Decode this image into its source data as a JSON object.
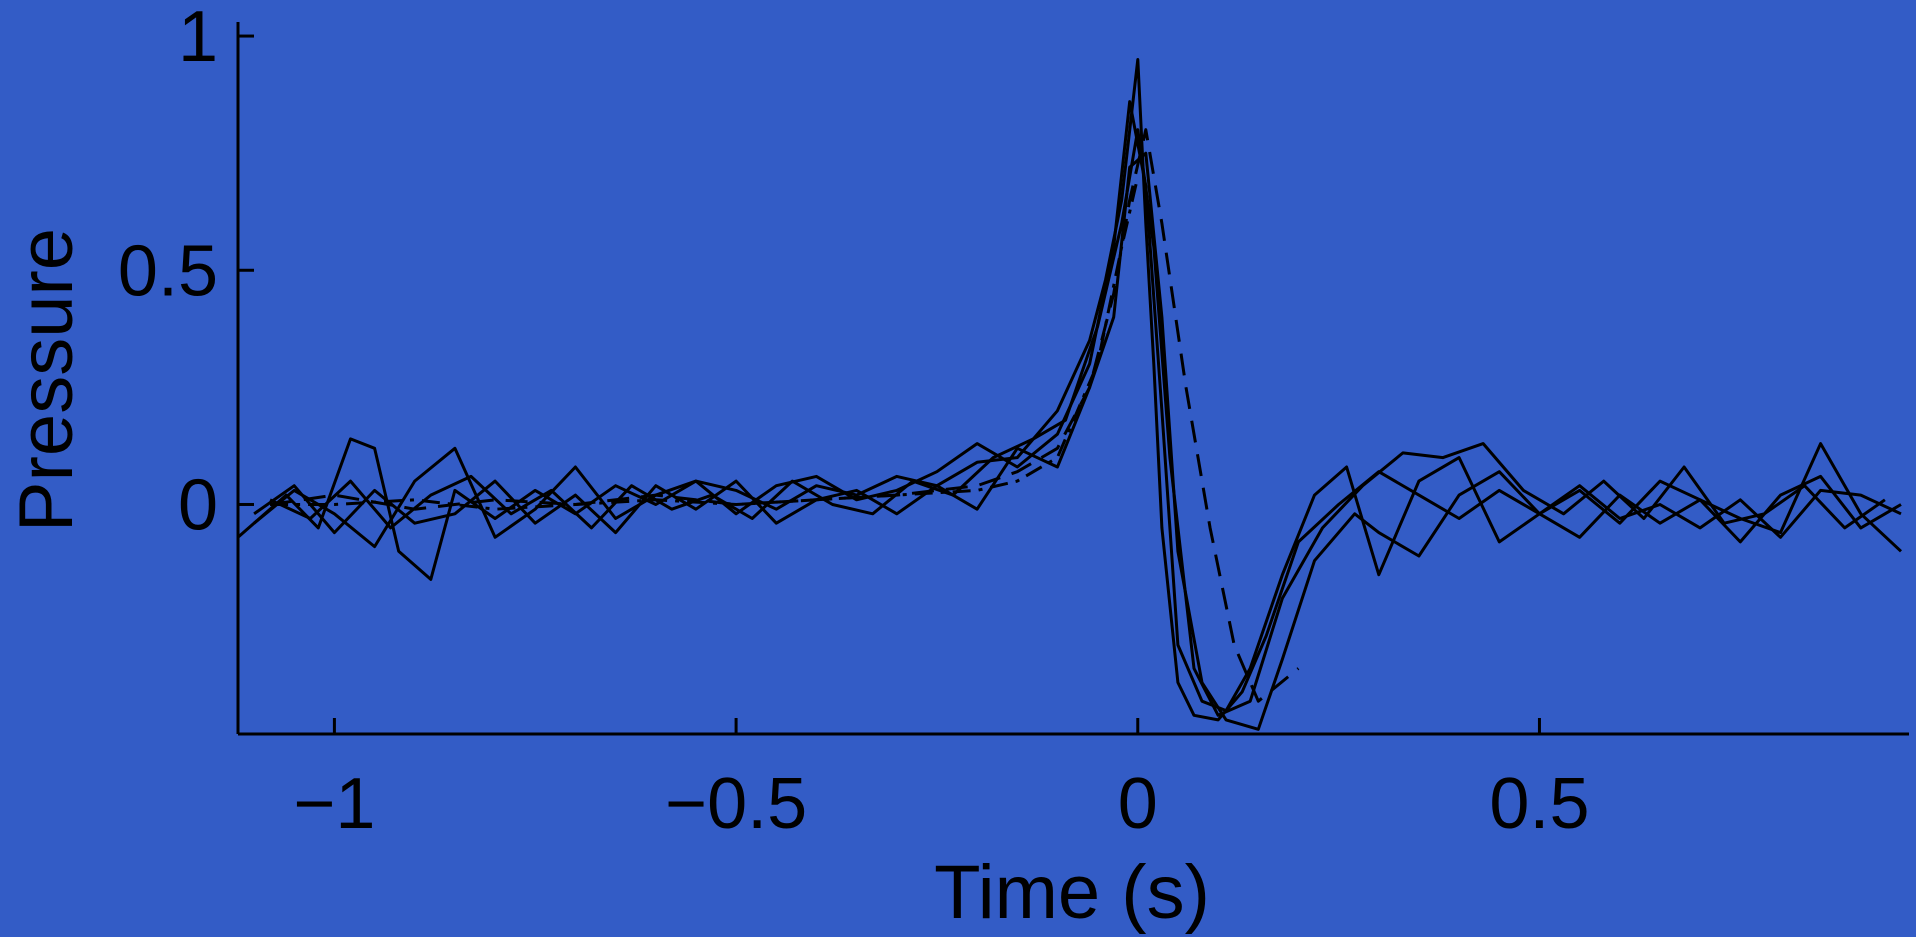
{
  "chart_data": {
    "type": "line",
    "title": "",
    "xlabel": "Time (s)",
    "ylabel": "Pressure",
    "xlim": [
      -1.12,
      0.96
    ],
    "ylim": [
      -0.49,
      1.03
    ],
    "xticks": [
      -1,
      -0.5,
      0,
      0.5
    ],
    "xtick_labels": [
      "−1",
      "−0.5",
      "0",
      "0.5"
    ],
    "yticks": [
      0,
      0.5,
      1
    ],
    "ytick_labels": [
      "0",
      "0.5",
      "1"
    ],
    "grid": false,
    "legend": "none",
    "background_color": "#335cc6",
    "line_color": "#000000",
    "series": [
      {
        "style": "solid",
        "x": [
          -1.12,
          -1.06,
          -1.02,
          -0.98,
          -0.95,
          -0.92,
          -0.88,
          -0.85,
          -0.8,
          -0.75,
          -0.7,
          -0.65,
          -0.6,
          -0.55,
          -0.5,
          -0.45,
          -0.4,
          -0.35,
          -0.3,
          -0.25,
          -0.2,
          -0.15,
          -0.1,
          -0.06,
          -0.04,
          -0.02,
          0,
          0.01,
          0.02,
          0.03,
          0.05,
          0.07,
          0.1,
          0.13,
          0.16,
          0.2,
          0.25,
          0.3,
          0.35,
          0.4,
          0.45,
          0.5,
          0.55,
          0.6,
          0.65,
          0.7,
          0.75,
          0.8,
          0.85,
          0.9,
          0.95
        ],
        "y": [
          -0.07,
          0.02,
          -0.05,
          0.14,
          0.12,
          -0.1,
          -0.16,
          0.03,
          -0.03,
          0.03,
          -0.02,
          0.04,
          0,
          0.05,
          0.03,
          -0.01,
          0.04,
          0.02,
          0.06,
          0.04,
          0.09,
          0.1,
          0.2,
          0.35,
          0.48,
          0.65,
          0.95,
          0.6,
          0.3,
          -0.05,
          -0.38,
          -0.45,
          -0.46,
          -0.4,
          -0.28,
          -0.08,
          0,
          0.07,
          0.02,
          -0.03,
          0.03,
          -0.02,
          -0.07,
          0.02,
          -0.04,
          0.01,
          -0.03,
          -0.06,
          0.13,
          -0.02,
          -0.1
        ]
      },
      {
        "style": "solid",
        "x": [
          -1.1,
          -1.05,
          -1,
          -0.95,
          -0.9,
          -0.85,
          -0.8,
          -0.75,
          -0.7,
          -0.65,
          -0.6,
          -0.55,
          -0.5,
          -0.45,
          -0.4,
          -0.35,
          -0.3,
          -0.25,
          -0.2,
          -0.15,
          -0.1,
          -0.06,
          -0.03,
          -0.01,
          0.01,
          0.03,
          0.05,
          0.08,
          0.11,
          0.14,
          0.18,
          0.22,
          0.26,
          0.3,
          0.35,
          0.4,
          0.45,
          0.5,
          0.55,
          0.6,
          0.65,
          0.7,
          0.75,
          0.8,
          0.85,
          0.9,
          0.95
        ],
        "y": [
          -0.04,
          0.03,
          -0.02,
          -0.09,
          0.05,
          0.12,
          -0.07,
          -0.01,
          0.08,
          -0.03,
          0.02,
          0.05,
          -0.02,
          0.04,
          0.06,
          0.01,
          0.03,
          0.07,
          0.13,
          0.08,
          0.15,
          0.3,
          0.55,
          0.86,
          0.68,
          0.2,
          -0.3,
          -0.42,
          -0.44,
          -0.35,
          -0.15,
          0.02,
          0.08,
          -0.15,
          0.05,
          0.1,
          -0.08,
          -0.02,
          0.04,
          -0.03,
          0,
          -0.05,
          0.01,
          -0.07,
          0.03,
          0.02,
          -0.02
        ]
      },
      {
        "style": "solid",
        "x": [
          -1.1,
          -1.05,
          -1,
          -0.95,
          -0.9,
          -0.85,
          -0.8,
          -0.75,
          -0.7,
          -0.65,
          -0.6,
          -0.55,
          -0.5,
          -0.45,
          -0.4,
          -0.35,
          -0.3,
          -0.25,
          -0.2,
          -0.15,
          -0.1,
          -0.06,
          -0.03,
          -0.01,
          0.01,
          0.03,
          0.05,
          0.08,
          0.11,
          0.15,
          0.18,
          0.22,
          0.27,
          0.3,
          0.35,
          0.4,
          0.45,
          0.5,
          0.55,
          0.6,
          0.65,
          0.7,
          0.75,
          0.8,
          0.85,
          0.9,
          0.95
        ],
        "y": [
          -0.02,
          0.04,
          -0.06,
          0.03,
          -0.04,
          -0.02,
          0.05,
          -0.04,
          0.02,
          -0.06,
          0.04,
          -0.01,
          0.05,
          -0.04,
          0.01,
          0.03,
          -0.02,
          0.04,
          -0.01,
          0.12,
          0.08,
          0.25,
          0.4,
          0.72,
          0.75,
          0.4,
          -0.1,
          -0.38,
          -0.46,
          -0.48,
          -0.33,
          -0.12,
          -0.02,
          -0.06,
          -0.11,
          0.02,
          0.07,
          -0.02,
          0.03,
          -0.04,
          0.05,
          0.01,
          -0.08,
          0.02,
          0.06,
          -0.05,
          0
        ]
      },
      {
        "style": "solid",
        "x": [
          -1.08,
          -1.03,
          -0.98,
          -0.93,
          -0.88,
          -0.83,
          -0.78,
          -0.73,
          -0.68,
          -0.63,
          -0.58,
          -0.53,
          -0.48,
          -0.43,
          -0.38,
          -0.33,
          -0.28,
          -0.23,
          -0.18,
          -0.13,
          -0.09,
          -0.05,
          -0.02,
          0,
          0.02,
          0.04,
          0.07,
          0.1,
          0.14,
          0.18,
          0.23,
          0.28,
          0.33,
          0.38,
          0.43,
          0.48,
          0.53,
          0.58,
          0.63,
          0.68,
          0.73,
          0.78,
          0.83,
          0.88,
          0.93
        ],
        "y": [
          0.01,
          -0.03,
          0.05,
          -0.05,
          0.02,
          0.06,
          -0.02,
          0.03,
          -0.05,
          0.04,
          -0.01,
          0.02,
          -0.03,
          0.05,
          0,
          -0.02,
          0.05,
          0.02,
          0.1,
          0.14,
          0.18,
          0.38,
          0.6,
          0.8,
          0.55,
          0.1,
          -0.35,
          -0.45,
          -0.42,
          -0.2,
          -0.05,
          0.04,
          0.11,
          0.1,
          0.13,
          0.03,
          -0.02,
          0.05,
          -0.03,
          0.08,
          -0.04,
          -0.02,
          0.04,
          -0.05,
          0.01
        ]
      },
      {
        "style": "dashed",
        "x": [
          -1.08,
          -1,
          -0.9,
          -0.8,
          -0.7,
          -0.6,
          -0.5,
          -0.4,
          -0.3,
          -0.2,
          -0.15,
          -0.1,
          -0.06,
          -0.03,
          -0.01,
          0.01,
          0.03,
          0.06,
          0.09,
          0.12,
          0.15,
          0.2
        ],
        "y": [
          0,
          0.02,
          -0.01,
          0.01,
          0,
          0.02,
          0,
          0.01,
          0.02,
          0.04,
          0.07,
          0.12,
          0.25,
          0.45,
          0.65,
          0.8,
          0.6,
          0.25,
          -0.05,
          -0.3,
          -0.42,
          -0.35
        ]
      },
      {
        "style": "dashdot",
        "x": [
          -1.08,
          -1,
          -0.9,
          -0.8,
          -0.7,
          -0.6,
          -0.5,
          -0.4,
          -0.3,
          -0.2,
          -0.15,
          -0.1,
          -0.05,
          -0.02,
          0
        ],
        "y": [
          0,
          0,
          0.01,
          -0.01,
          0,
          0.01,
          0,
          0.01,
          0.02,
          0.03,
          0.05,
          0.1,
          0.3,
          0.55,
          0.7
        ]
      }
    ]
  }
}
